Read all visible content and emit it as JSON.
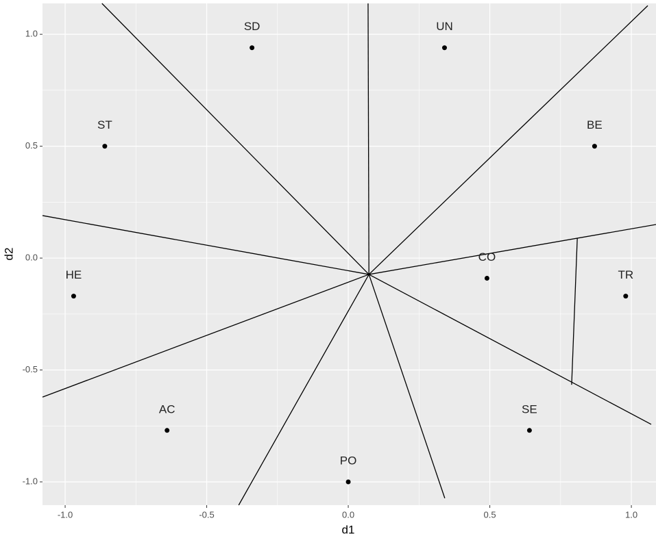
{
  "chart_data": {
    "type": "scatter",
    "xlabel": "d1",
    "ylabel": "d2",
    "labels": [
      "SD",
      "UN",
      "ST",
      "BE",
      "HE",
      "TR",
      "CO",
      "AC",
      "SE",
      "PO"
    ],
    "x": [
      -0.34,
      0.34,
      -0.86,
      0.87,
      -0.97,
      0.98,
      0.49,
      -0.64,
      0.64,
      0.0
    ],
    "y": [
      0.94,
      0.94,
      0.5,
      0.5,
      -0.17,
      -0.17,
      -0.09,
      -0.77,
      -0.77,
      -1.0
    ],
    "color": "#000000",
    "segments": [
      {
        "x": [
          -0.87,
          0.073
        ],
        "y": [
          1.138,
          -0.073
        ]
      },
      {
        "x": [
          0.07,
          0.073
        ],
        "y": [
          1.138,
          -0.073
        ]
      },
      {
        "x": [
          1.058,
          0.073
        ],
        "y": [
          1.128,
          -0.073
        ]
      },
      {
        "x": [
          -1.08,
          0.073
        ],
        "y": [
          0.19,
          -0.073
        ]
      },
      {
        "x": [
          -1.08,
          0.073
        ],
        "y": [
          -0.621,
          -0.073
        ]
      },
      {
        "x": [
          1.087,
          0.073
        ],
        "y": [
          0.15,
          -0.073
        ]
      },
      {
        "x": [
          -0.387,
          0.073
        ],
        "y": [
          -1.104,
          -0.073
        ]
      },
      {
        "x": [
          0.341,
          0.073
        ],
        "y": [
          -1.073,
          -0.073
        ]
      },
      {
        "x": [
          1.07,
          0.073
        ],
        "y": [
          -0.743,
          -0.073
        ]
      },
      {
        "x": [
          0.809,
          0.789
        ],
        "y": [
          0.089,
          -0.566
        ]
      }
    ],
    "xlim": [
      -1.08,
      1.087
    ],
    "ylim": [
      -1.104,
      1.138
    ],
    "xticks": [
      {
        "value": -1,
        "label": "-1.0"
      },
      {
        "value": -0.5,
        "label": "-0.5"
      },
      {
        "value": 0,
        "label": "0.0"
      },
      {
        "value": 0.5,
        "label": "0.5"
      },
      {
        "value": 1,
        "label": "1.0"
      }
    ],
    "yticks": [
      {
        "value": -1,
        "label": "-1.0"
      },
      {
        "value": -0.5,
        "label": "-0.5"
      },
      {
        "value": 0,
        "label": "0.0"
      },
      {
        "value": 0.5,
        "label": "0.5"
      },
      {
        "value": 1,
        "label": "1.0"
      }
    ],
    "xminorticks": [
      -0.75,
      -0.25,
      0.25,
      0.75
    ],
    "yminorticks": [
      -0.75,
      -0.25,
      0.25,
      0.75
    ],
    "grid": true
  }
}
